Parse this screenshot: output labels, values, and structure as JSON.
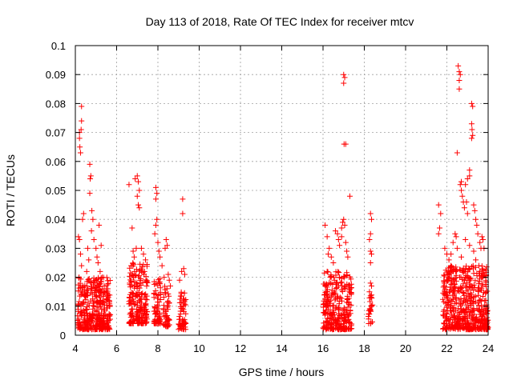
{
  "chart_data": {
    "type": "scatter",
    "title": "Day 113 of 2018, Rate Of TEC Index for receiver mtcv",
    "xlabel": "GPS time / hours",
    "ylabel": "ROTI / TECUs",
    "xlim": [
      4,
      24
    ],
    "ylim": [
      0,
      0.1
    ],
    "x_ticks": [
      4,
      6,
      8,
      10,
      12,
      14,
      16,
      18,
      20,
      22,
      24
    ],
    "x_tick_labels": [
      "4",
      "6",
      "8",
      "10",
      "12",
      "14",
      "16",
      "18",
      "20",
      "22",
      "24"
    ],
    "y_ticks": [
      0,
      0.01,
      0.02,
      0.03,
      0.04,
      0.05,
      0.06,
      0.07,
      0.08,
      0.09,
      0.1
    ],
    "y_tick_labels": [
      "0",
      "0.01",
      "0.02",
      "0.03",
      "0.04",
      "0.05",
      "0.06",
      "0.07",
      "0.08",
      "0.09",
      "0.1"
    ],
    "grid": true,
    "marker": "+",
    "series": [
      {
        "name": "ROTI",
        "color": "#ff0000",
        "points": [
          [
            4.2,
            0.07
          ],
          [
            4.2,
            0.068
          ],
          [
            4.22,
            0.065
          ],
          [
            4.25,
            0.063
          ],
          [
            4.3,
            0.079
          ],
          [
            4.3,
            0.074
          ],
          [
            4.28,
            0.071
          ],
          [
            4.15,
            0.034
          ],
          [
            4.2,
            0.033
          ],
          [
            4.35,
            0.04
          ],
          [
            4.4,
            0.042
          ],
          [
            4.25,
            0.028
          ],
          [
            4.3,
            0.024
          ],
          [
            4.18,
            0.02
          ],
          [
            4.7,
            0.059
          ],
          [
            4.75,
            0.055
          ],
          [
            4.72,
            0.054
          ],
          [
            4.7,
            0.049
          ],
          [
            4.8,
            0.043
          ],
          [
            4.85,
            0.04
          ],
          [
            4.78,
            0.036
          ],
          [
            4.9,
            0.033
          ],
          [
            5.0,
            0.03
          ],
          [
            5.05,
            0.027
          ],
          [
            5.1,
            0.025
          ],
          [
            5.2,
            0.022
          ],
          [
            5.3,
            0.02
          ],
          [
            5.4,
            0.017
          ],
          [
            5.5,
            0.016
          ],
          [
            5.6,
            0.014
          ],
          [
            4.6,
            0.03
          ],
          [
            4.65,
            0.026
          ],
          [
            4.55,
            0.022
          ],
          [
            5.15,
            0.038
          ],
          [
            5.25,
            0.031
          ],
          [
            6.6,
            0.052
          ],
          [
            6.75,
            0.037
          ],
          [
            6.9,
            0.054
          ],
          [
            7.0,
            0.055
          ],
          [
            7.05,
            0.053
          ],
          [
            7.1,
            0.05
          ],
          [
            7.0,
            0.048
          ],
          [
            7.05,
            0.045
          ],
          [
            7.1,
            0.044
          ],
          [
            6.8,
            0.029
          ],
          [
            6.85,
            0.027
          ],
          [
            7.2,
            0.03
          ],
          [
            7.3,
            0.028
          ],
          [
            7.4,
            0.026
          ],
          [
            6.7,
            0.024
          ],
          [
            7.35,
            0.022
          ],
          [
            6.95,
            0.03
          ],
          [
            7.9,
            0.051
          ],
          [
            7.95,
            0.049
          ],
          [
            7.9,
            0.047
          ],
          [
            7.95,
            0.04
          ],
          [
            7.9,
            0.038
          ],
          [
            7.85,
            0.035
          ],
          [
            8.0,
            0.032
          ],
          [
            8.05,
            0.029
          ],
          [
            8.1,
            0.027
          ],
          [
            8.2,
            0.024
          ],
          [
            8.3,
            0.02
          ],
          [
            8.4,
            0.033
          ],
          [
            8.45,
            0.031
          ],
          [
            8.35,
            0.03
          ],
          [
            8.5,
            0.021
          ],
          [
            8.55,
            0.019
          ],
          [
            8.6,
            0.017
          ],
          [
            9.2,
            0.047
          ],
          [
            9.2,
            0.042
          ],
          [
            9.25,
            0.023
          ],
          [
            9.15,
            0.022
          ],
          [
            9.3,
            0.021
          ],
          [
            9.05,
            0.019
          ],
          [
            16.1,
            0.038
          ],
          [
            16.2,
            0.034
          ],
          [
            16.3,
            0.03
          ],
          [
            16.25,
            0.028
          ],
          [
            16.4,
            0.027
          ],
          [
            16.5,
            0.025
          ],
          [
            16.6,
            0.036
          ],
          [
            16.7,
            0.035
          ],
          [
            16.75,
            0.033
          ],
          [
            16.8,
            0.031
          ],
          [
            16.9,
            0.037
          ],
          [
            16.95,
            0.039
          ],
          [
            17.0,
            0.04
          ],
          [
            17.05,
            0.038
          ],
          [
            16.9,
            0.034
          ],
          [
            17.1,
            0.032
          ],
          [
            17.15,
            0.029
          ],
          [
            17.2,
            0.027
          ],
          [
            17.0,
            0.09
          ],
          [
            17.05,
            0.089
          ],
          [
            17.0,
            0.087
          ],
          [
            17.02,
            0.066
          ],
          [
            17.1,
            0.066
          ],
          [
            17.3,
            0.048
          ],
          [
            16.2,
            0.022
          ],
          [
            16.35,
            0.02
          ],
          [
            16.55,
            0.019
          ],
          [
            16.65,
            0.018
          ],
          [
            18.3,
            0.042
          ],
          [
            18.35,
            0.04
          ],
          [
            18.3,
            0.035
          ],
          [
            18.25,
            0.033
          ],
          [
            18.3,
            0.029
          ],
          [
            18.35,
            0.028
          ],
          [
            18.3,
            0.025
          ],
          [
            18.3,
            0.018
          ],
          [
            18.35,
            0.017
          ],
          [
            18.25,
            0.015
          ],
          [
            21.6,
            0.045
          ],
          [
            21.7,
            0.042
          ],
          [
            21.65,
            0.037
          ],
          [
            21.6,
            0.035
          ],
          [
            21.9,
            0.03
          ],
          [
            22.0,
            0.028
          ],
          [
            22.1,
            0.026
          ],
          [
            22.2,
            0.024
          ],
          [
            22.3,
            0.022
          ],
          [
            22.4,
            0.035
          ],
          [
            22.45,
            0.034
          ],
          [
            22.5,
            0.063
          ],
          [
            22.55,
            0.093
          ],
          [
            22.6,
            0.091
          ],
          [
            22.65,
            0.09
          ],
          [
            22.6,
            0.088
          ],
          [
            22.6,
            0.085
          ],
          [
            22.7,
            0.053
          ],
          [
            22.65,
            0.052
          ],
          [
            22.7,
            0.05
          ],
          [
            22.75,
            0.048
          ],
          [
            22.8,
            0.046
          ],
          [
            22.9,
            0.052
          ],
          [
            23.0,
            0.054
          ],
          [
            22.95,
            0.046
          ],
          [
            22.85,
            0.044
          ],
          [
            23.0,
            0.042
          ],
          [
            23.1,
            0.057
          ],
          [
            23.1,
            0.055
          ],
          [
            23.2,
            0.08
          ],
          [
            23.25,
            0.079
          ],
          [
            23.2,
            0.073
          ],
          [
            23.22,
            0.071
          ],
          [
            23.25,
            0.069
          ],
          [
            23.2,
            0.068
          ],
          [
            23.3,
            0.045
          ],
          [
            23.35,
            0.043
          ],
          [
            23.4,
            0.04
          ],
          [
            23.45,
            0.038
          ],
          [
            23.5,
            0.035
          ],
          [
            23.6,
            0.032
          ],
          [
            23.65,
            0.03
          ],
          [
            23.7,
            0.034
          ],
          [
            23.75,
            0.033
          ],
          [
            23.8,
            0.03
          ],
          [
            22.3,
            0.032
          ],
          [
            22.5,
            0.03
          ],
          [
            22.9,
            0.033
          ],
          [
            23.1,
            0.031
          ],
          [
            23.3,
            0.029
          ],
          [
            22.2,
            0.028
          ],
          [
            22.7,
            0.027
          ],
          [
            23.4,
            0.026
          ],
          [
            23.55,
            0.024
          ],
          [
            23.6,
            0.022
          ],
          [
            23.7,
            0.02
          ]
        ],
        "dense_clusters": [
          {
            "x": [
              4.1,
              5.7
            ],
            "y": [
              0.002,
              0.02
            ],
            "count": 380
          },
          {
            "x": [
              6.6,
              7.5
            ],
            "y": [
              0.004,
              0.026
            ],
            "count": 200
          },
          {
            "x": [
              7.8,
              8.15
            ],
            "y": [
              0.004,
              0.02
            ],
            "count": 70
          },
          {
            "x": [
              8.25,
              8.55
            ],
            "y": [
              0.003,
              0.017
            ],
            "count": 50
          },
          {
            "x": [
              9.0,
              9.35
            ],
            "y": [
              0.002,
              0.017
            ],
            "count": 60
          },
          {
            "x": [
              16.0,
              17.4
            ],
            "y": [
              0.002,
              0.022
            ],
            "count": 280
          },
          {
            "x": [
              18.2,
              18.4
            ],
            "y": [
              0.004,
              0.014
            ],
            "count": 25
          },
          {
            "x": [
              21.8,
              24.0
            ],
            "y": [
              0.002,
              0.024
            ],
            "count": 520
          }
        ]
      }
    ]
  }
}
